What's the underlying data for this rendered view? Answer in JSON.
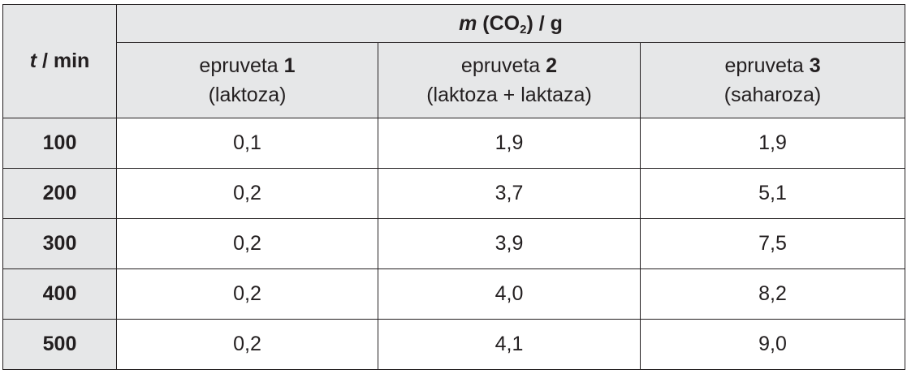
{
  "table": {
    "corner": {
      "var": "t",
      "rest": "/ min"
    },
    "group_header": {
      "var": "m",
      "open": "(CO",
      "sub": "2",
      "close": ") / g"
    },
    "columns": [
      {
        "word": "epruveta",
        "number": "1",
        "note": "(laktoza)"
      },
      {
        "word": "epruveta",
        "number": "2",
        "note": "(laktoza + laktaza)"
      },
      {
        "word": "epruveta",
        "number": "3",
        "note": "(saharoza)"
      }
    ],
    "rows": [
      {
        "label": "100",
        "cells": [
          "0,1",
          "1,9",
          "1,9"
        ]
      },
      {
        "label": "200",
        "cells": [
          "0,2",
          "3,7",
          "5,1"
        ]
      },
      {
        "label": "300",
        "cells": [
          "0,2",
          "3,9",
          "7,5"
        ]
      },
      {
        "label": "400",
        "cells": [
          "0,2",
          "4,0",
          "8,2"
        ]
      },
      {
        "label": "500",
        "cells": [
          "0,2",
          "4,1",
          "9,0"
        ]
      }
    ]
  }
}
